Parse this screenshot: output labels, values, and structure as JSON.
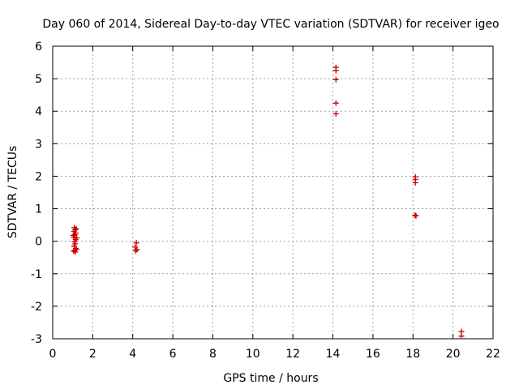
{
  "chart_data": {
    "type": "scatter",
    "title": "Day 060 of 2014, Sidereal Day-to-day VTEC variation (SDTVAR) for receiver igeo",
    "xlabel": "GPS time / hours",
    "ylabel": "SDTVAR / TECUs",
    "xlim": [
      0,
      22
    ],
    "ylim": [
      -3,
      6
    ],
    "xticks": [
      "0",
      "2",
      "4",
      "6",
      "8",
      "10",
      "12",
      "14",
      "16",
      "18",
      "20",
      "22"
    ],
    "yticks": [
      "-3",
      "-2",
      "-1",
      "0",
      "1",
      "2",
      "3",
      "4",
      "5",
      "6"
    ],
    "grid": true,
    "marker": "plus",
    "color": "#cc0000",
    "series": [
      {
        "name": "SDTVAR",
        "points": [
          [
            1.08,
            0.42
          ],
          [
            1.12,
            0.35
          ],
          [
            1.06,
            0.3
          ],
          [
            1.15,
            0.25
          ],
          [
            1.1,
            0.2
          ],
          [
            1.05,
            0.12
          ],
          [
            1.14,
            0.05
          ],
          [
            1.09,
            -0.02
          ],
          [
            1.12,
            -0.08
          ],
          [
            1.07,
            -0.15
          ],
          [
            1.16,
            -0.22
          ],
          [
            1.1,
            -0.28
          ],
          [
            1.05,
            -0.3
          ],
          [
            1.13,
            -0.33
          ],
          [
            1.18,
            -0.25
          ],
          [
            1.03,
            0.18
          ],
          [
            1.17,
            0.38
          ],
          [
            1.2,
            0.1
          ],
          [
            4.18,
            -0.05
          ],
          [
            4.12,
            -0.18
          ],
          [
            4.2,
            -0.25
          ],
          [
            4.15,
            -0.3
          ],
          [
            14.15,
            5.35
          ],
          [
            14.15,
            5.25
          ],
          [
            14.15,
            4.97
          ],
          [
            14.15,
            4.25
          ],
          [
            14.15,
            3.92
          ],
          [
            18.12,
            1.98
          ],
          [
            18.12,
            1.9
          ],
          [
            18.12,
            1.8
          ],
          [
            18.1,
            0.8
          ],
          [
            18.15,
            0.78
          ],
          [
            20.42,
            -2.78
          ],
          [
            20.42,
            -2.92
          ]
        ]
      }
    ]
  }
}
